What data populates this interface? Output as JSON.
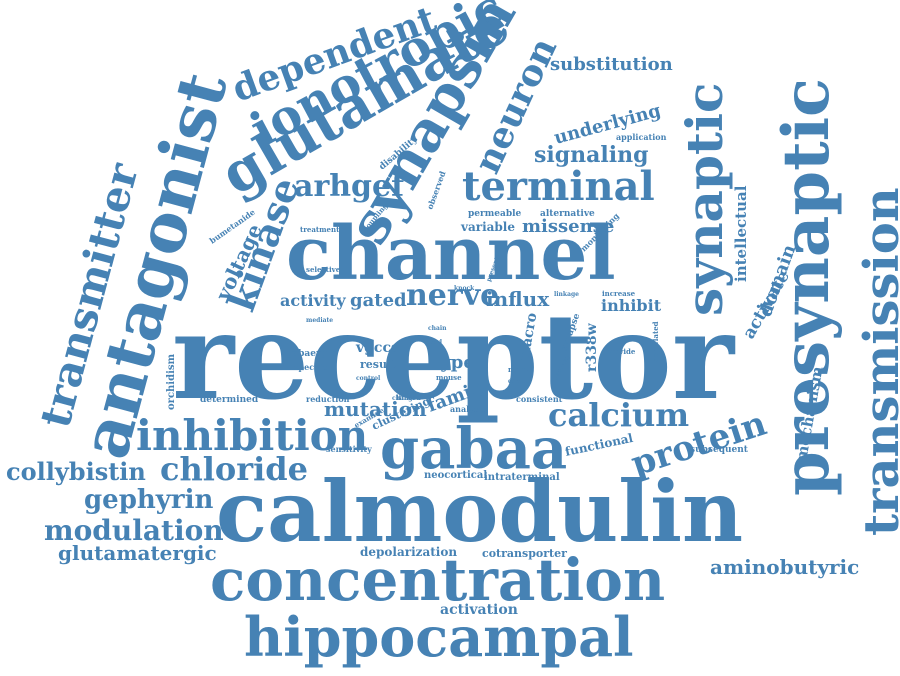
{
  "accent_color": "#4682b4",
  "background_color": "#ffffff",
  "words": [
    "receptor",
    "calmodulin",
    "channel",
    "concentration",
    "hippocampal",
    "presynaptic",
    "transmission",
    "antagonist",
    "glutamate",
    "ionotropic",
    "synapsin",
    "synaptic",
    "gabaa",
    "inhibition",
    "terminal",
    "transmitter",
    "dependent",
    "chloride",
    "calcium",
    "protein",
    "neuron",
    "kinase",
    "arhgef",
    "modulation",
    "collybistin",
    "gephyrin",
    "glutamatergic",
    "aminobutyric",
    "signaling",
    "substitution",
    "nerve",
    "mutation",
    "voltage",
    "underlying",
    "intellectual",
    "domain",
    "activate",
    "mechanism",
    "activity",
    "gated",
    "influx",
    "inhibit",
    "missense",
    "variable",
    "permeable",
    "alternative",
    "family",
    "type",
    "vgccs",
    "result",
    "r338w",
    "activation",
    "depolarization",
    "cotransporter",
    "neocortical",
    "intraterminal",
    "functional",
    "subsequent",
    "sensitivity",
    "gabaergic",
    "specific",
    "orchidism",
    "determined",
    "reduction",
    "clustering",
    "analysis",
    "consistent",
    "disability",
    "observed",
    "coupling",
    "treatment",
    "bumetanide",
    "selective",
    "mediate",
    "macro",
    "synapse",
    "correlated",
    "provide",
    "increase",
    "linkage",
    "present",
    "knock",
    "application",
    "monitoring",
    "examine",
    "change",
    "control",
    "mouse",
    "many",
    "direct",
    "pathway",
    "linked",
    "bead",
    "chain"
  ]
}
